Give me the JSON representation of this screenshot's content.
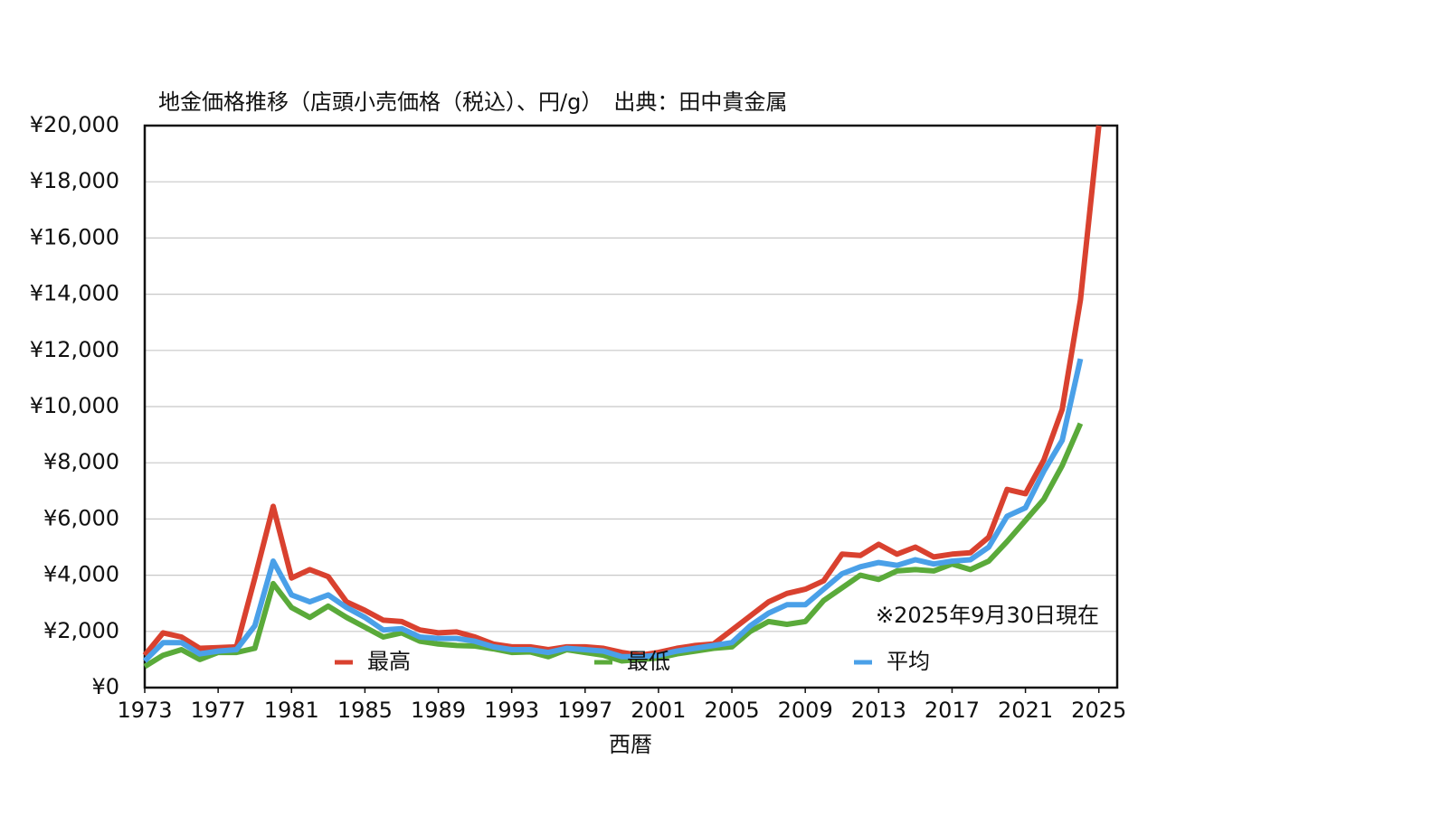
{
  "chart_data": {
    "type": "line",
    "title": "地金価格推移（店頭小売価格（税込）、円/g）　出典：田中貴金属",
    "x_label": "西暦",
    "annotation": "※2025年9月30日現在",
    "x": [
      1973,
      1974,
      1975,
      1976,
      1977,
      1978,
      1979,
      1980,
      1981,
      1982,
      1983,
      1984,
      1985,
      1986,
      1987,
      1988,
      1989,
      1990,
      1991,
      1992,
      1993,
      1994,
      1995,
      1996,
      1997,
      1998,
      1999,
      2000,
      2001,
      2002,
      2003,
      2004,
      2005,
      2006,
      2007,
      2008,
      2009,
      2010,
      2011,
      2012,
      2013,
      2014,
      2015,
      2016,
      2017,
      2018,
      2019,
      2020,
      2021,
      2022,
      2023,
      2024,
      2025
    ],
    "series": [
      {
        "name": "最高",
        "color": "#d9412f",
        "values": [
          1150,
          1950,
          1800,
          1400,
          1420,
          1450,
          3900,
          6450,
          3900,
          4200,
          3950,
          3050,
          2750,
          2400,
          2350,
          2050,
          1950,
          1980,
          1800,
          1550,
          1450,
          1450,
          1350,
          1450,
          1450,
          1400,
          1250,
          1150,
          1250,
          1400,
          1500,
          1550,
          2050,
          2550,
          3050,
          3350,
          3500,
          3800,
          4750,
          4700,
          5100,
          4750,
          5000,
          4650,
          4750,
          4800,
          5350,
          7050,
          6900,
          8100,
          9900,
          13800,
          20000
        ]
      },
      {
        "name": "最低",
        "color": "#5aaa3a",
        "values": [
          750,
          1150,
          1350,
          1000,
          1250,
          1250,
          1400,
          3700,
          2850,
          2500,
          2900,
          2500,
          2150,
          1800,
          1950,
          1650,
          1550,
          1500,
          1480,
          1380,
          1250,
          1270,
          1100,
          1350,
          1250,
          1150,
          950,
          1000,
          1050,
          1200,
          1300,
          1400,
          1450,
          2000,
          2350,
          2250,
          2350,
          3100,
          3550,
          4000,
          3850,
          4150,
          4200,
          4150,
          4400,
          4200,
          4500,
          5200,
          5950,
          6700,
          7900,
          9400,
          null
        ]
      },
      {
        "name": "平均",
        "color": "#4aa0e8",
        "values": [
          950,
          1600,
          1600,
          1200,
          1300,
          1350,
          2200,
          4500,
          3300,
          3050,
          3300,
          2850,
          2500,
          2050,
          2100,
          1800,
          1750,
          1750,
          1650,
          1450,
          1350,
          1350,
          1250,
          1400,
          1350,
          1300,
          1100,
          1100,
          1150,
          1300,
          1400,
          1500,
          1600,
          2200,
          2650,
          2950,
          2950,
          3500,
          4050,
          4300,
          4450,
          4350,
          4550,
          4400,
          4500,
          4550,
          5000,
          6100,
          6400,
          7700,
          8800,
          11700,
          null
        ]
      }
    ],
    "xlim": [
      1973,
      2026
    ],
    "xticks": [
      1973,
      1977,
      1981,
      1985,
      1989,
      1993,
      1997,
      2001,
      2005,
      2009,
      2013,
      2017,
      2021,
      2025
    ],
    "ylim": [
      0,
      20000
    ],
    "yticks": [
      {
        "value": 0,
        "label": "¥0"
      },
      {
        "value": 2000,
        "label": "¥2,000"
      },
      {
        "value": 4000,
        "label": "¥4,000"
      },
      {
        "value": 6000,
        "label": "¥6,000"
      },
      {
        "value": 8000,
        "label": "¥8,000"
      },
      {
        "value": 10000,
        "label": "¥10,000"
      },
      {
        "value": 12000,
        "label": "¥12,000"
      },
      {
        "value": 14000,
        "label": "¥14,000"
      },
      {
        "value": 16000,
        "label": "¥16,000"
      },
      {
        "value": 18000,
        "label": "¥18,000"
      },
      {
        "value": 20000,
        "label": "¥20,000"
      }
    ],
    "grid": true
  }
}
